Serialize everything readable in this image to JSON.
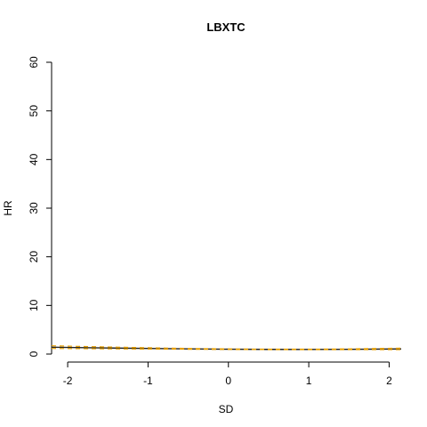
{
  "chart_data": {
    "type": "line",
    "title": "LBXTC",
    "xlabel": "SD",
    "ylabel": "HR",
    "xlim": [
      -2.2,
      2.15
    ],
    "ylim": [
      0,
      60
    ],
    "x_ticks": [
      -2,
      -1,
      0,
      1,
      2
    ],
    "x_tick_labels": [
      "-2",
      "-1",
      "0",
      "1",
      "2"
    ],
    "y_ticks": [
      0,
      10,
      20,
      30,
      40,
      50,
      60
    ],
    "y_tick_labels": [
      "0",
      "10",
      "20",
      "30",
      "40",
      "50",
      "60"
    ],
    "grid": false,
    "series": [
      {
        "role": "estimate",
        "color": "#222222",
        "line_style": "solid",
        "x": [
          -2.2,
          -1.5,
          -1.0,
          -0.5,
          0.0,
          0.5,
          1.0,
          1.5,
          2.15
        ],
        "y": [
          1.4,
          1.25,
          1.15,
          1.07,
          1.0,
          0.96,
          0.95,
          0.98,
          1.05
        ]
      },
      {
        "role": "upper-bound",
        "color": "#e69f00",
        "line_style": "dashed",
        "x": [
          -2.2,
          -1.5,
          -1.0,
          -0.5,
          0.0,
          0.5,
          1.0,
          1.5,
          2.15
        ],
        "y": [
          1.7,
          1.45,
          1.3,
          1.15,
          1.05,
          1.0,
          1.0,
          1.06,
          1.22
        ]
      },
      {
        "role": "lower-bound",
        "color": "#e69f00",
        "line_style": "dashed",
        "x": [
          -2.2,
          -1.5,
          -1.0,
          -0.5,
          0.0,
          0.5,
          1.0,
          1.5,
          2.15
        ],
        "y": [
          1.15,
          1.07,
          1.02,
          0.99,
          0.95,
          0.92,
          0.9,
          0.91,
          0.92
        ]
      }
    ]
  }
}
